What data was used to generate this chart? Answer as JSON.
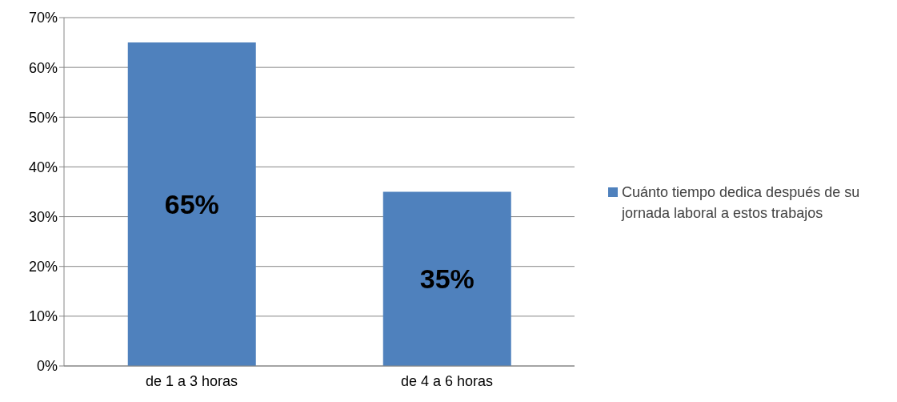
{
  "chart_data": {
    "type": "bar",
    "categories": [
      "de 1 a 3 horas",
      "de 4 a 6 horas"
    ],
    "series": [
      {
        "name": "Cuánto tiempo dedica después de su jornada laboral a estos trabajos",
        "color": "#4f81bd",
        "values": [
          65,
          35
        ],
        "value_labels": [
          "65%",
          "35%"
        ]
      }
    ],
    "ylim": [
      0,
      70
    ],
    "yticks": [
      {
        "value": 0,
        "label": "0%"
      },
      {
        "value": 10,
        "label": "10%"
      },
      {
        "value": 20,
        "label": "20%"
      },
      {
        "value": 30,
        "label": "30%"
      },
      {
        "value": 40,
        "label": "40%"
      },
      {
        "value": 50,
        "label": "50%"
      },
      {
        "value": 60,
        "label": "60%"
      },
      {
        "value": 70,
        "label": "70%"
      }
    ],
    "grid": "y",
    "legend": "right"
  }
}
